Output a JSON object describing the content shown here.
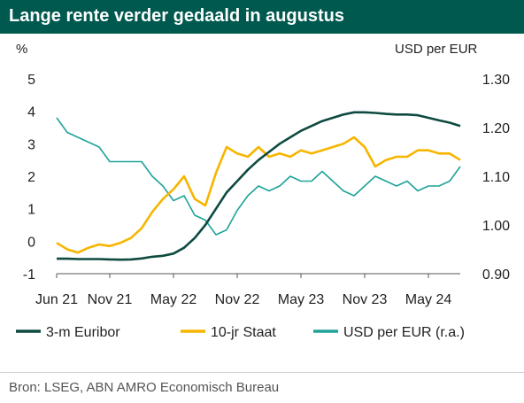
{
  "title": "Lange rente verder gedaald in augustus",
  "source": "Bron: LSEG, ABN AMRO Economisch Bureau",
  "chart_data": {
    "type": "line",
    "title": "Lange rente verder gedaald in augustus",
    "left_axis_label": "%",
    "right_axis_label": "USD per EUR",
    "ylim_left": [
      -1,
      5
    ],
    "ylim_right": [
      0.9,
      1.3
    ],
    "yticks_left": [
      "5",
      "4",
      "3",
      "2",
      "1",
      "0",
      "-1"
    ],
    "yticks_right": [
      "1.30",
      "1.20",
      "1.10",
      "1.00",
      "0.90"
    ],
    "xticks": [
      "Jun 21",
      "Nov 21",
      "May 22",
      "Nov 22",
      "May 23",
      "Nov 23",
      "May 24"
    ],
    "x": [
      "Jun 21",
      "Jul 21",
      "Aug 21",
      "Sep 21",
      "Oct 21",
      "Nov 21",
      "Dec 21",
      "Jan 22",
      "Feb 22",
      "Mar 22",
      "Apr 22",
      "May 22",
      "Jun 22",
      "Jul 22",
      "Aug 22",
      "Sep 22",
      "Oct 22",
      "Nov 22",
      "Dec 22",
      "Jan 23",
      "Feb 23",
      "Mar 23",
      "Apr 23",
      "May 23",
      "Jun 23",
      "Jul 23",
      "Aug 23",
      "Sep 23",
      "Oct 23",
      "Nov 23",
      "Dec 23",
      "Jan 24",
      "Feb 24",
      "Mar 24",
      "Apr 24",
      "May 24",
      "Jun 24",
      "Jul 24",
      "Aug 24"
    ],
    "series": [
      {
        "name": "3-m Euribor",
        "axis": "left",
        "color": "#0e4a40",
        "values": [
          -0.54,
          -0.54,
          -0.55,
          -0.55,
          -0.55,
          -0.56,
          -0.57,
          -0.56,
          -0.53,
          -0.48,
          -0.45,
          -0.38,
          -0.2,
          0.1,
          0.5,
          1.0,
          1.5,
          1.85,
          2.2,
          2.5,
          2.75,
          3.0,
          3.2,
          3.4,
          3.55,
          3.7,
          3.8,
          3.9,
          3.97,
          3.97,
          3.95,
          3.92,
          3.9,
          3.9,
          3.88,
          3.8,
          3.72,
          3.65,
          3.55
        ]
      },
      {
        "name": "10-jr Staat",
        "axis": "left",
        "color": "#f7b500",
        "values": [
          -0.05,
          -0.25,
          -0.35,
          -0.2,
          -0.1,
          -0.15,
          -0.05,
          0.1,
          0.4,
          0.9,
          1.3,
          1.6,
          2.0,
          1.3,
          1.1,
          2.1,
          2.9,
          2.7,
          2.6,
          2.9,
          2.6,
          2.7,
          2.6,
          2.8,
          2.7,
          2.8,
          2.9,
          3.0,
          3.2,
          2.9,
          2.3,
          2.5,
          2.6,
          2.6,
          2.8,
          2.8,
          2.7,
          2.7,
          2.5
        ]
      },
      {
        "name": "USD per EUR (r.a.)",
        "axis": "right",
        "color": "#1ea399",
        "values": [
          1.22,
          1.19,
          1.18,
          1.17,
          1.16,
          1.13,
          1.13,
          1.13,
          1.13,
          1.1,
          1.08,
          1.05,
          1.06,
          1.02,
          1.01,
          0.98,
          0.99,
          1.03,
          1.06,
          1.08,
          1.07,
          1.08,
          1.1,
          1.09,
          1.09,
          1.11,
          1.09,
          1.07,
          1.06,
          1.08,
          1.1,
          1.09,
          1.08,
          1.09,
          1.07,
          1.08,
          1.08,
          1.09,
          1.12
        ]
      }
    ],
    "grid": false,
    "legend_position": "bottom"
  },
  "colors": {
    "title_bg": "#00594f",
    "euribor": "#0e4a40",
    "staat": "#f7b500",
    "usd": "#1ea399"
  }
}
